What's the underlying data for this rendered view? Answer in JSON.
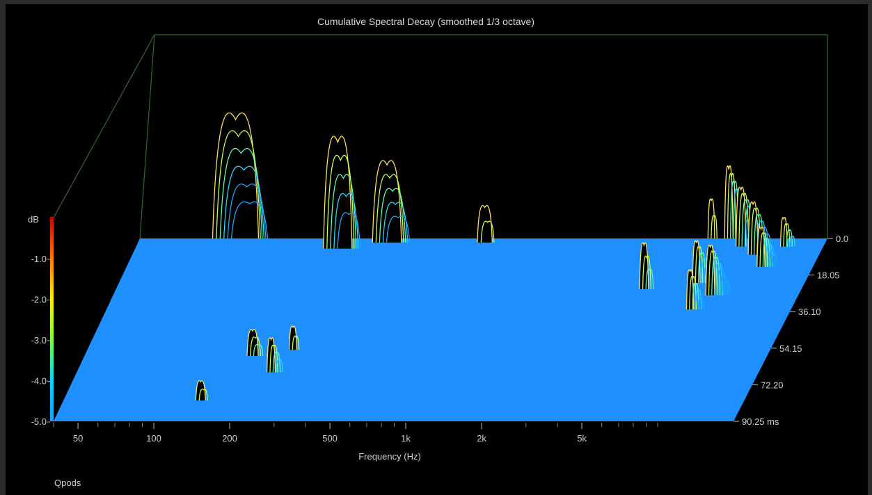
{
  "chart_data": {
    "type": "waterfall-3d",
    "title": "Cumulative Spectral Decay (smoothed 1/3 octave)",
    "xlabel": "Frequency (Hz)",
    "x_scale": "log",
    "xlim": [
      40,
      20000
    ],
    "x_ticks": [
      {
        "value": 50,
        "label": "50"
      },
      {
        "value": 100,
        "label": "100"
      },
      {
        "value": 200,
        "label": "200"
      },
      {
        "value": 500,
        "label": "500"
      },
      {
        "value": 1000,
        "label": "1k"
      },
      {
        "value": 2000,
        "label": "2k"
      },
      {
        "value": 5000,
        "label": "5k"
      }
    ],
    "time_axis": {
      "unit": "ms",
      "ticks": [
        {
          "value": 0.0,
          "label": "0.0"
        },
        {
          "value": 18.05,
          "label": "18.05"
        },
        {
          "value": 36.1,
          "label": "36.10"
        },
        {
          "value": 54.15,
          "label": "54.15"
        },
        {
          "value": 72.2,
          "label": "72.20"
        },
        {
          "value": 90.25,
          "label": "90.25 ms"
        }
      ]
    },
    "color_scale": {
      "label": "dB",
      "ticks": [
        "-1.0",
        "-2.0",
        "-3.0",
        "-4.0",
        "-5.0"
      ],
      "colors": [
        "#cc0000",
        "#ff7a00",
        "#ffee00",
        "#7cff3a",
        "#00d5ff",
        "#18a0ff"
      ]
    },
    "floor_color": "#1e90ff",
    "peaks": [
      {
        "freq": 95,
        "t": 0,
        "h": 0.95,
        "w": 0.55,
        "n": 6
      },
      {
        "freq": 250,
        "t": 5,
        "h": 0.85,
        "w": 0.35,
        "n": 5
      },
      {
        "freq": 380,
        "t": 2,
        "h": 0.62,
        "w": 0.35,
        "n": 5
      },
      {
        "freq": 920,
        "t": 2,
        "h": 0.28,
        "w": 0.18,
        "n": 2
      },
      {
        "freq": 4800,
        "t": 25,
        "h": 0.35,
        "w": 0.12,
        "n": 3
      },
      {
        "freq": 185,
        "t": 58,
        "h": 0.2,
        "w": 0.18,
        "n": 3
      },
      {
        "freq": 235,
        "t": 66,
        "h": 0.26,
        "w": 0.14,
        "n": 4
      },
      {
        "freq": 260,
        "t": 55,
        "h": 0.18,
        "w": 0.12,
        "n": 2
      },
      {
        "freq": 140,
        "t": 80,
        "h": 0.15,
        "w": 0.18,
        "n": 2
      },
      {
        "freq": 7000,
        "t": 0,
        "h": 0.3,
        "w": 0.08,
        "n": 2
      },
      {
        "freq": 8200,
        "t": 0,
        "h": 0.55,
        "w": 0.1,
        "n": 8
      },
      {
        "freq": 9500,
        "t": 4,
        "h": 0.45,
        "w": 0.12,
        "n": 8
      },
      {
        "freq": 11000,
        "t": 8,
        "h": 0.4,
        "w": 0.12,
        "n": 7
      },
      {
        "freq": 7500,
        "t": 22,
        "h": 0.32,
        "w": 0.1,
        "n": 6
      },
      {
        "freq": 9000,
        "t": 28,
        "h": 0.38,
        "w": 0.12,
        "n": 7
      },
      {
        "freq": 12500,
        "t": 14,
        "h": 0.3,
        "w": 0.1,
        "n": 6
      },
      {
        "freq": 14000,
        "t": 4,
        "h": 0.22,
        "w": 0.08,
        "n": 4
      },
      {
        "freq": 8000,
        "t": 35,
        "h": 0.3,
        "w": 0.1,
        "n": 5
      }
    ],
    "legend_text": "Qpods"
  }
}
